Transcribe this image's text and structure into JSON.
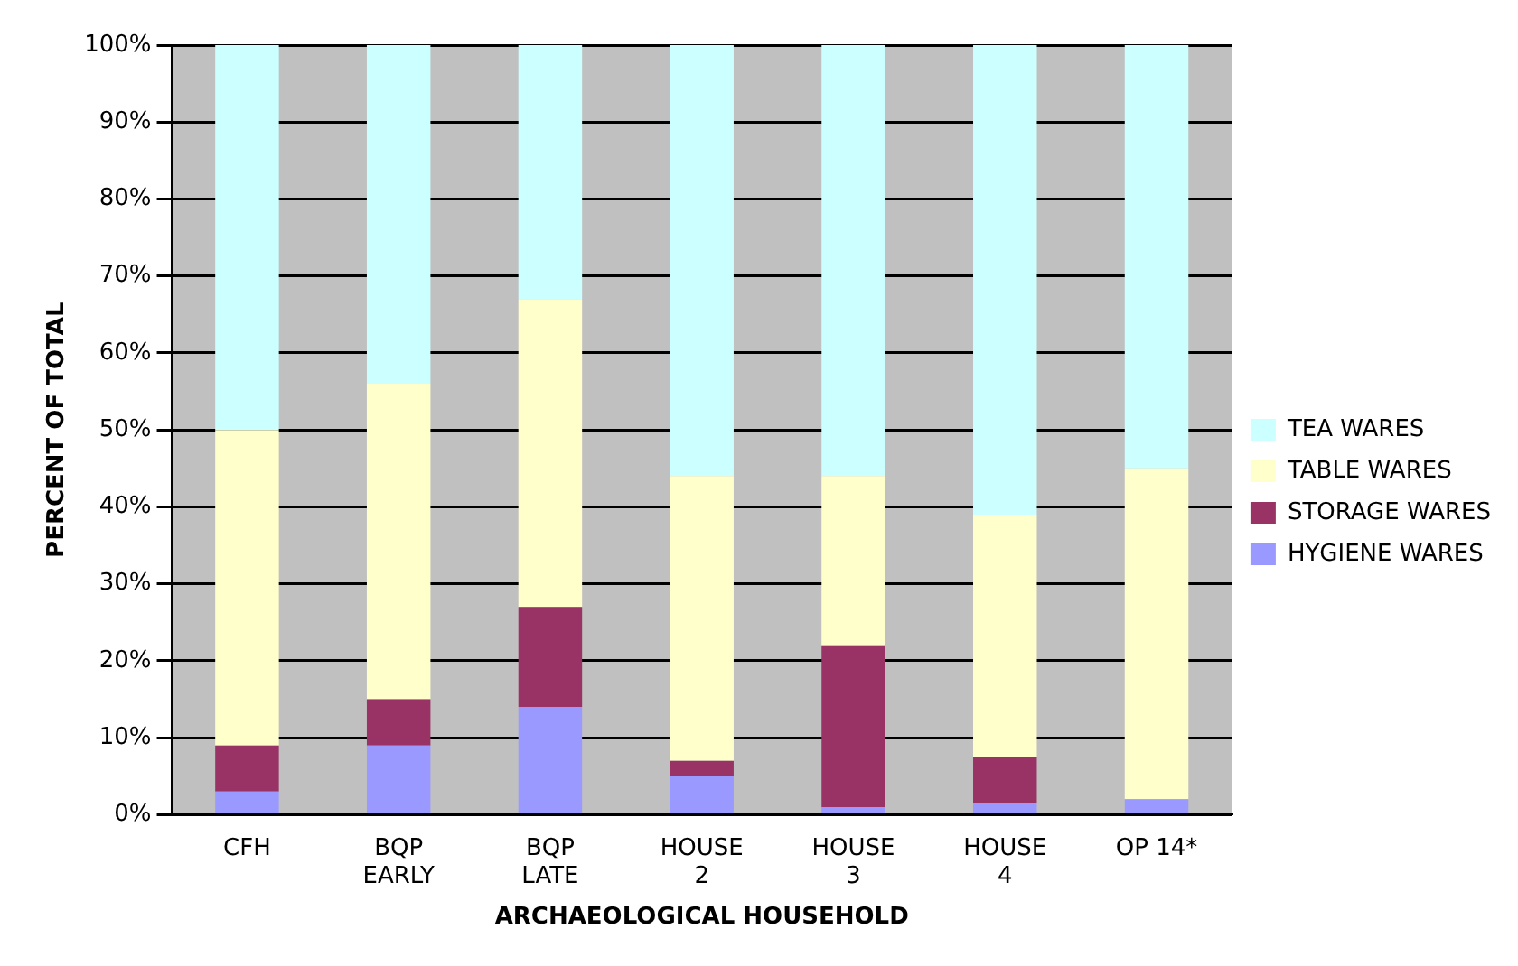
{
  "chart_data": {
    "type": "bar",
    "stacked": true,
    "xlabel": "ARCHAEOLOGICAL HOUSEHOLD",
    "ylabel": "PERCENT OF TOTAL",
    "categories": [
      "CFH",
      "BQP\nEARLY",
      "BQP\nLATE",
      "HOUSE\n2",
      "HOUSE\n3",
      "HOUSE\n4",
      "OP 14*"
    ],
    "series": [
      {
        "name": "HYGIENE WARES",
        "color": "#9999ff",
        "values": [
          3,
          9,
          14,
          5,
          1,
          1.5,
          2
        ]
      },
      {
        "name": "STORAGE WARES",
        "color": "#993366",
        "values": [
          6,
          6,
          13,
          2,
          21,
          6,
          0
        ]
      },
      {
        "name": "TABLE WARES",
        "color": "#ffffcc",
        "values": [
          41,
          41,
          40,
          37,
          22,
          31.5,
          43
        ]
      },
      {
        "name": "TEA WARES",
        "color": "#ccffff",
        "values": [
          50,
          44,
          33,
          56,
          56,
          61,
          55
        ]
      }
    ],
    "ylim": [
      0,
      100
    ],
    "yticks": [
      {
        "value": 0,
        "label": "0%"
      },
      {
        "value": 10,
        "label": "10%"
      },
      {
        "value": 20,
        "label": "20%"
      },
      {
        "value": 30,
        "label": "30%"
      },
      {
        "value": 40,
        "label": "40%"
      },
      {
        "value": 50,
        "label": "50%"
      },
      {
        "value": 60,
        "label": "60%"
      },
      {
        "value": 70,
        "label": "70%"
      },
      {
        "value": 80,
        "label": "80%"
      },
      {
        "value": 90,
        "label": "90%"
      },
      {
        "value": 100,
        "label": "100%"
      }
    ],
    "grid": "y",
    "legend": "right"
  }
}
